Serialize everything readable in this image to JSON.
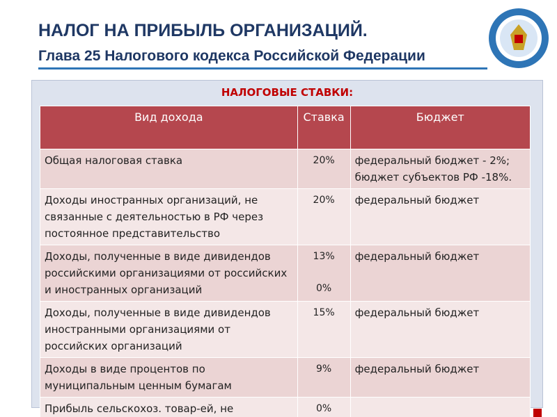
{
  "header": {
    "title": "НАЛОГ НА ПРИБЫЛЬ ОРГАНИЗАЦИЙ.",
    "subtitle": "Глава 25 Налогового кодекса Российской Федерации"
  },
  "table": {
    "title": "НАЛОГОВЫЕ СТАВКИ:",
    "columns": [
      "Вид дохода",
      "Ставка",
      "Бюджет"
    ],
    "rows": [
      [
        "Общая налоговая ставка",
        [
          "20%"
        ],
        "федеральный бюджет - 2%; бюджет субъектов РФ -18%."
      ],
      [
        "Доходы иностранных организаций, не связанные с деятельностью в РФ через постоянное представительство",
        [
          "20%"
        ],
        "федеральный бюджет"
      ],
      [
        "Доходы, полученные в виде дивидендов российскими организациями от российских и иностранных организаций",
        [
          "13%",
          "0%"
        ],
        "федеральный бюджет"
      ],
      [
        "Доходы, полученные в виде дивидендов иностранными организациями от российских организаций",
        [
          "15%"
        ],
        "федеральный бюджет"
      ],
      [
        "Доходы в виде процентов по муниципальным ценным бумагам",
        [
          "9%"
        ],
        "федеральный бюджет"
      ],
      [
        "Прибыль сельскохоз. товар-ей, не перешедших на уплату ЕСХН",
        [
          "0%"
        ],
        ""
      ]
    ]
  }
}
